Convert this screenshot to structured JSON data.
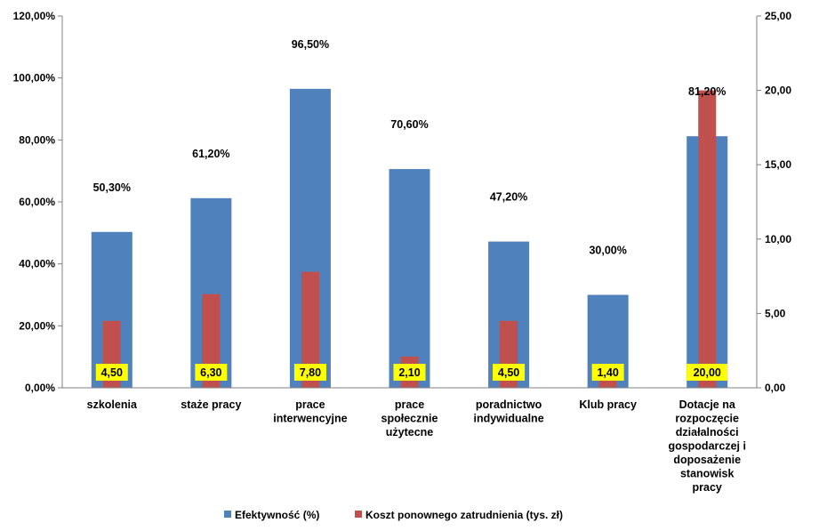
{
  "chart_data": {
    "type": "bar",
    "categories": [
      [
        "szkolenia"
      ],
      [
        "staże pracy"
      ],
      [
        "prace",
        "interwencyjne"
      ],
      [
        "prace",
        "społecznie",
        "użytecne"
      ],
      [
        "poradnictwo",
        "indywidualne"
      ],
      [
        "Klub pracy"
      ],
      [
        "Dotacje na",
        "rozpoczęcie",
        "działalności",
        "gospodarczej i",
        "doposażenie",
        "stanowisk",
        "pracy"
      ]
    ],
    "series": [
      {
        "name": "Efektywność (%)",
        "axis": "left",
        "color": "#4f81bd",
        "values": [
          50.3,
          61.2,
          96.5,
          70.6,
          47.2,
          30.0,
          81.2
        ],
        "labels": [
          "50,30%",
          "61,20%",
          "96,50%",
          "70,60%",
          "47,20%",
          "30,00%",
          "81,20%"
        ]
      },
      {
        "name": "Koszt ponownego zatrudnienia (tys. zł)",
        "axis": "right",
        "color": "#c0504d",
        "values": [
          4.5,
          6.3,
          7.8,
          2.1,
          4.5,
          1.4,
          20.0
        ],
        "labels": [
          "4,50",
          "6,30",
          "7,80",
          "2,10",
          "4,50",
          "1,40",
          "20,00"
        ],
        "label_background": "#ffff00"
      }
    ],
    "y_left": {
      "min": 0,
      "max": 120,
      "ticks": [
        "0,00%",
        "20,00%",
        "40,00%",
        "60,00%",
        "80,00%",
        "100,00%",
        "120,00%"
      ]
    },
    "y_right": {
      "min": 0,
      "max": 25,
      "ticks": [
        "0,00",
        "5,00",
        "10,00",
        "15,00",
        "20,00",
        "25,00"
      ]
    },
    "grid": false,
    "legend": "bottom"
  }
}
